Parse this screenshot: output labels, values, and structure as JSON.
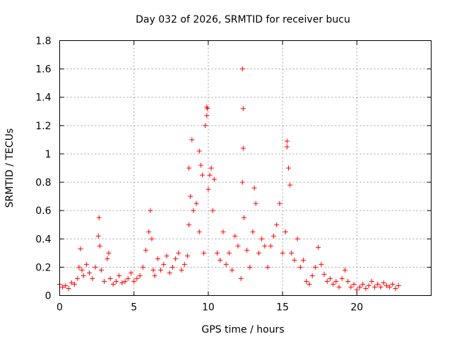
{
  "chart_data": {
    "type": "scatter",
    "title": "Day 032 of 2026, SRMTID for receiver bucu",
    "xlabel": "GPS time / hours",
    "ylabel": "SRMTID / TECUs",
    "xlim": [
      0,
      25
    ],
    "ylim": [
      0,
      1.8
    ],
    "xticks": [
      0,
      5,
      10,
      15,
      20
    ],
    "xtick_labels": [
      "0",
      "5",
      "10",
      "15",
      "20"
    ],
    "yticks": [
      0,
      0.2,
      0.4,
      0.6,
      0.8,
      1.0,
      1.2,
      1.4,
      1.6,
      1.8
    ],
    "ytick_labels": [
      "0",
      "0.2",
      "0.4",
      "0.6",
      "0.8",
      "1",
      "1.2",
      "1.4",
      "1.6",
      "1.8"
    ],
    "grid": true,
    "series": [
      {
        "name": "SRMTID",
        "marker": "+",
        "color": "#ff0000",
        "x": [
          0.0,
          0.2,
          0.4,
          0.6,
          0.8,
          1.0,
          1.2,
          1.3,
          1.4,
          1.5,
          1.6,
          1.8,
          2.0,
          2.2,
          2.4,
          2.6,
          2.65,
          2.7,
          2.8,
          3.0,
          3.2,
          3.3,
          3.4,
          3.6,
          3.8,
          4.0,
          4.2,
          4.4,
          4.6,
          4.8,
          5.0,
          5.2,
          5.4,
          5.6,
          5.8,
          6.0,
          6.1,
          6.2,
          6.3,
          6.4,
          6.6,
          6.8,
          7.0,
          7.2,
          7.4,
          7.6,
          7.8,
          8.0,
          8.2,
          8.4,
          8.6,
          8.7,
          8.8,
          8.9,
          9.0,
          9.2,
          9.4,
          9.6,
          9.7,
          9.8,
          9.9,
          10.0,
          10.1,
          10.2,
          10.3,
          10.4,
          10.6,
          10.8,
          11.0,
          11.2,
          11.4,
          11.6,
          11.8,
          12.0,
          12.2,
          12.3,
          12.35,
          12.4,
          12.6,
          12.8,
          13.0,
          13.1,
          13.2,
          13.4,
          13.6,
          13.8,
          14.0,
          14.2,
          14.4,
          14.6,
          14.8,
          15.0,
          15.2,
          15.3,
          15.4,
          15.5,
          15.6,
          15.8,
          16.0,
          16.2,
          16.4,
          16.6,
          16.8,
          17.0,
          17.2,
          17.4,
          17.6,
          17.8,
          18.0,
          18.2,
          18.4,
          18.6,
          18.8,
          19.0,
          19.2,
          19.4,
          19.6,
          19.8,
          20.0,
          20.2,
          20.4,
          20.6,
          20.8,
          21.0,
          21.2,
          21.4,
          21.6,
          21.8,
          22.0,
          22.2,
          22.4,
          22.6,
          22.8,
          9.9,
          9.95,
          12.3,
          12.35,
          15.3,
          9.4,
          9.5,
          8.7
        ],
        "y": [
          0.08,
          0.06,
          0.07,
          0.05,
          0.09,
          0.08,
          0.12,
          0.2,
          0.33,
          0.18,
          0.14,
          0.22,
          0.16,
          0.12,
          0.2,
          0.42,
          0.55,
          0.35,
          0.18,
          0.1,
          0.26,
          0.3,
          0.12,
          0.08,
          0.1,
          0.14,
          0.09,
          0.1,
          0.12,
          0.16,
          0.1,
          0.12,
          0.14,
          0.2,
          0.32,
          0.45,
          0.6,
          0.4,
          0.18,
          0.14,
          0.26,
          0.18,
          0.22,
          0.28,
          0.16,
          0.2,
          0.26,
          0.3,
          0.18,
          0.22,
          0.28,
          0.5,
          0.7,
          1.1,
          0.6,
          0.65,
          0.45,
          0.85,
          0.3,
          1.2,
          1.33,
          0.75,
          0.85,
          0.9,
          0.6,
          0.82,
          0.3,
          0.25,
          0.45,
          0.22,
          0.3,
          0.18,
          0.42,
          0.35,
          0.12,
          0.8,
          1.04,
          0.55,
          0.32,
          0.2,
          0.45,
          0.76,
          0.65,
          0.3,
          0.4,
          0.35,
          0.2,
          0.35,
          0.42,
          0.5,
          0.65,
          0.3,
          0.45,
          1.09,
          0.9,
          0.78,
          0.3,
          0.25,
          0.4,
          0.2,
          0.25,
          0.1,
          0.08,
          0.14,
          0.2,
          0.34,
          0.22,
          0.15,
          0.1,
          0.12,
          0.08,
          0.1,
          0.06,
          0.12,
          0.18,
          0.1,
          0.06,
          0.08,
          0.04,
          0.06,
          0.08,
          0.05,
          0.07,
          0.1,
          0.06,
          0.08,
          0.06,
          0.09,
          0.07,
          0.06,
          0.08,
          0.05,
          0.07,
          1.27,
          1.32,
          1.6,
          1.32,
          1.05,
          1.02,
          0.92,
          0.9
        ]
      }
    ]
  }
}
